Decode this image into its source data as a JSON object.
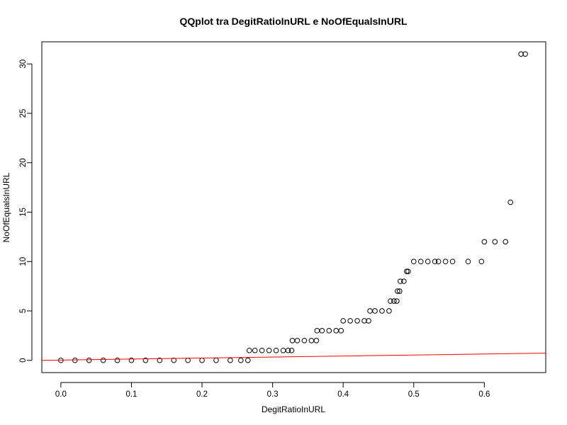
{
  "chart_data": {
    "type": "scatter",
    "title": "QQplot tra DegitRatioInURL e NoOfEqualsInURL",
    "xlabel": "DegitRatioInURL",
    "ylabel": "NoOfEqualsInURL",
    "xlim": [
      -0.027,
      0.687
    ],
    "ylim": [
      -1.24,
      32.24
    ],
    "xticks": [
      0.0,
      0.1,
      0.2,
      0.3,
      0.4,
      0.5,
      0.6
    ],
    "xtick_labels": [
      "0.0",
      "0.1",
      "0.2",
      "0.3",
      "0.4",
      "0.5",
      "0.6"
    ],
    "yticks": [
      0,
      5,
      10,
      15,
      20,
      25,
      30
    ],
    "ytick_labels": [
      "0",
      "5",
      "10",
      "15",
      "20",
      "25",
      "30"
    ],
    "grid": false,
    "series": [
      {
        "marker": "open-circle",
        "color": "#000000",
        "points": [
          [
            0.0,
            0
          ],
          [
            0.02,
            0
          ],
          [
            0.04,
            0
          ],
          [
            0.06,
            0
          ],
          [
            0.08,
            0
          ],
          [
            0.1,
            0
          ],
          [
            0.12,
            0
          ],
          [
            0.14,
            0
          ],
          [
            0.16,
            0
          ],
          [
            0.18,
            0
          ],
          [
            0.2,
            0
          ],
          [
            0.22,
            0
          ],
          [
            0.24,
            0
          ],
          [
            0.255,
            0
          ],
          [
            0.265,
            0
          ],
          [
            0.267,
            1
          ],
          [
            0.275,
            1
          ],
          [
            0.285,
            1
          ],
          [
            0.295,
            1
          ],
          [
            0.305,
            1
          ],
          [
            0.315,
            1
          ],
          [
            0.322,
            1
          ],
          [
            0.327,
            1
          ],
          [
            0.328,
            2
          ],
          [
            0.335,
            2
          ],
          [
            0.345,
            2
          ],
          [
            0.355,
            2
          ],
          [
            0.362,
            2
          ],
          [
            0.363,
            3
          ],
          [
            0.37,
            3
          ],
          [
            0.38,
            3
          ],
          [
            0.39,
            3
          ],
          [
            0.397,
            3
          ],
          [
            0.4,
            4
          ],
          [
            0.41,
            4
          ],
          [
            0.42,
            4
          ],
          [
            0.43,
            4
          ],
          [
            0.436,
            4
          ],
          [
            0.438,
            5
          ],
          [
            0.445,
            5
          ],
          [
            0.455,
            5
          ],
          [
            0.465,
            5
          ],
          [
            0.467,
            6
          ],
          [
            0.472,
            6
          ],
          [
            0.476,
            6
          ],
          [
            0.477,
            7
          ],
          [
            0.48,
            7
          ],
          [
            0.481,
            8
          ],
          [
            0.486,
            8
          ],
          [
            0.49,
            9
          ],
          [
            0.492,
            9
          ],
          [
            0.5,
            10
          ],
          [
            0.51,
            10
          ],
          [
            0.52,
            10
          ],
          [
            0.53,
            10
          ],
          [
            0.535,
            10
          ],
          [
            0.545,
            10
          ],
          [
            0.555,
            10
          ],
          [
            0.577,
            10
          ],
          [
            0.596,
            10
          ],
          [
            0.6,
            12
          ],
          [
            0.615,
            12
          ],
          [
            0.63,
            12
          ],
          [
            0.637,
            16
          ],
          [
            0.652,
            31
          ],
          [
            0.658,
            31
          ]
        ]
      },
      {
        "type": "line",
        "color": "#ff0000",
        "points": [
          [
            -0.027,
            0.0
          ],
          [
            0.687,
            0.73
          ]
        ]
      }
    ]
  }
}
